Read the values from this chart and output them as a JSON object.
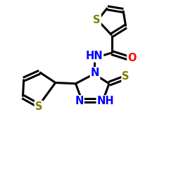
{
  "background_color": "#ffffff",
  "atom_colors": {
    "S": "#808000",
    "N": "#0000ff",
    "O": "#ff0000",
    "C": "#000000",
    "H": "#000000"
  },
  "bond_color": "#000000",
  "bond_width": 2.2,
  "figsize": [
    2.5,
    2.5
  ],
  "dpi": 100
}
